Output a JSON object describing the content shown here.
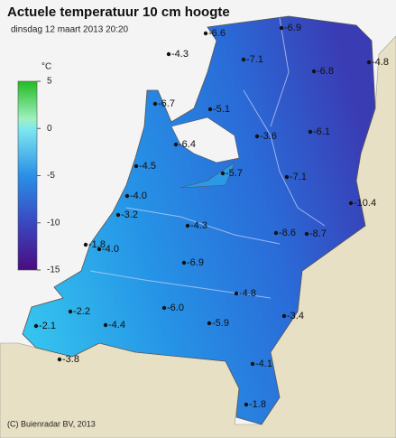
{
  "header": {
    "title": "Actuele temperatuur 10 cm hoogte",
    "subtitle": "dinsdag 12 maart 2013 20:20"
  },
  "legend": {
    "unit": "°C",
    "lim": [
      -15,
      5
    ],
    "ticks": [
      5,
      0,
      -5,
      -10,
      -15
    ]
  },
  "stations": [
    "-6.6",
    "-6.9",
    "-4.3",
    "-7.1",
    "-4.8",
    "-6.8",
    "-6.7",
    "-5.1",
    "-3.6",
    "-6.1",
    "-6.4",
    "-4.5",
    "-5.7",
    "-7.1",
    "-4.0",
    "-10.4",
    "-3.2",
    "-4.3",
    "-8.6",
    "-8.7",
    "-1.8",
    "-4.0",
    "-6.9",
    "-4.8",
    "-6.0",
    "-2.2",
    "-3.4",
    "-2.1",
    "-4.4",
    "-5.9",
    "-3.8",
    "-4.1",
    "-1.8"
  ],
  "footer": {
    "copyright": "(C) Buienradar BV, 2013"
  }
}
